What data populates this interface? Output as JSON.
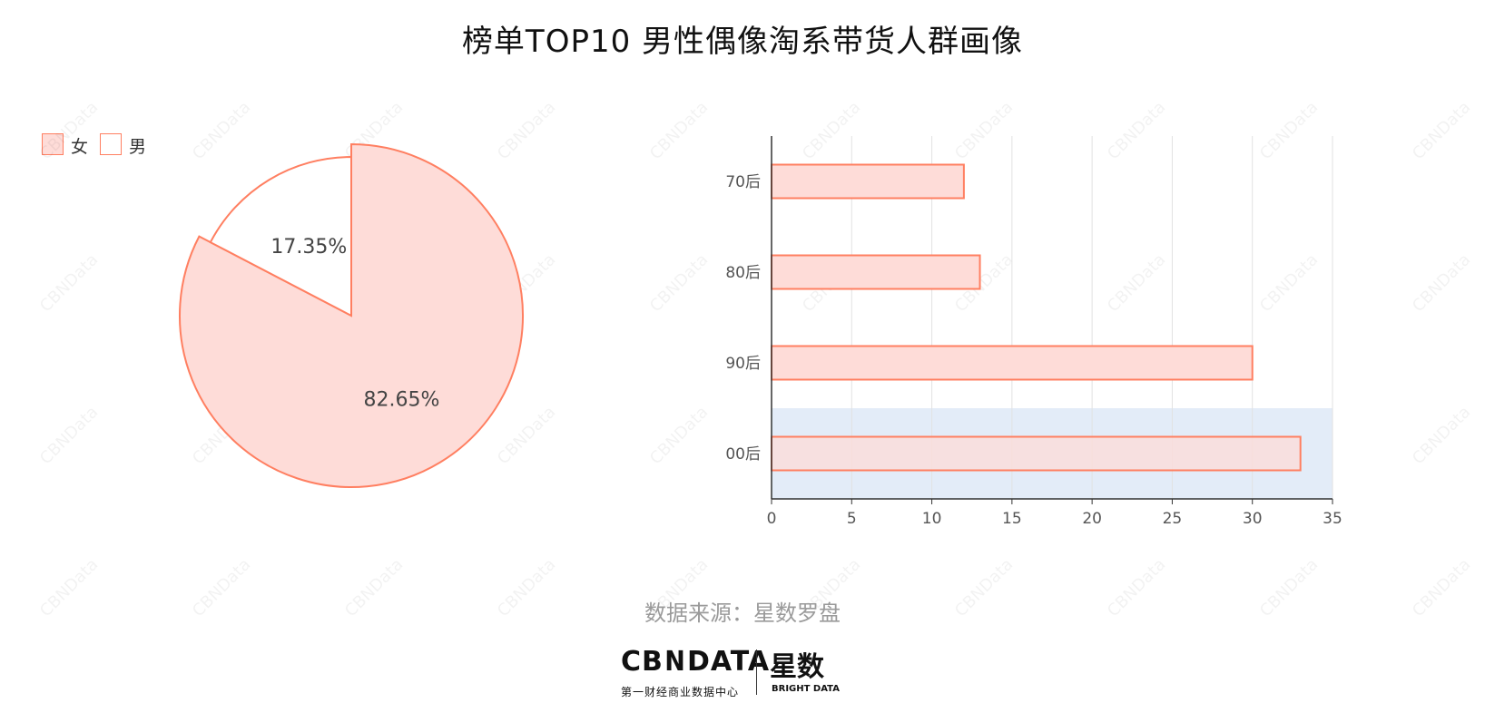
{
  "title": "榜单TOP10 男性偶像淘系带货人群画像",
  "source": "数据来源：星数罗盘",
  "watermark": "CBNData",
  "logo": {
    "cbn": "CB∕DATA",
    "cbn_sub": "第一财经商业数据中心",
    "xingshu": "星数",
    "xingshu_sub": "BRIGHT DATA"
  },
  "colors": {
    "accent_stroke": "#ff7f61",
    "accent_fill": "#fedcd8",
    "white_fill": "#ffffff",
    "highlight_band": "#e3ecf8",
    "grid": "#e2e2e2"
  },
  "chart_data": [
    {
      "type": "pie",
      "legend": [
        "女",
        "男"
      ],
      "legend_position": "top-left",
      "slices": [
        {
          "name": "女",
          "value": 82.65,
          "label": "82.65%",
          "color": "#fedcd8"
        },
        {
          "name": "男",
          "value": 17.35,
          "label": "17.35%",
          "color": "#ffffff"
        }
      ]
    },
    {
      "type": "bar",
      "orientation": "horizontal",
      "categories": [
        "70后",
        "80后",
        "90后",
        "00后"
      ],
      "values": [
        12,
        13,
        30,
        33
      ],
      "xlim": [
        0,
        35
      ],
      "xticks": [
        "0",
        "5",
        "10",
        "15",
        "20",
        "25",
        "30",
        "35"
      ],
      "grid": true,
      "highlighted_category": "00后"
    }
  ]
}
